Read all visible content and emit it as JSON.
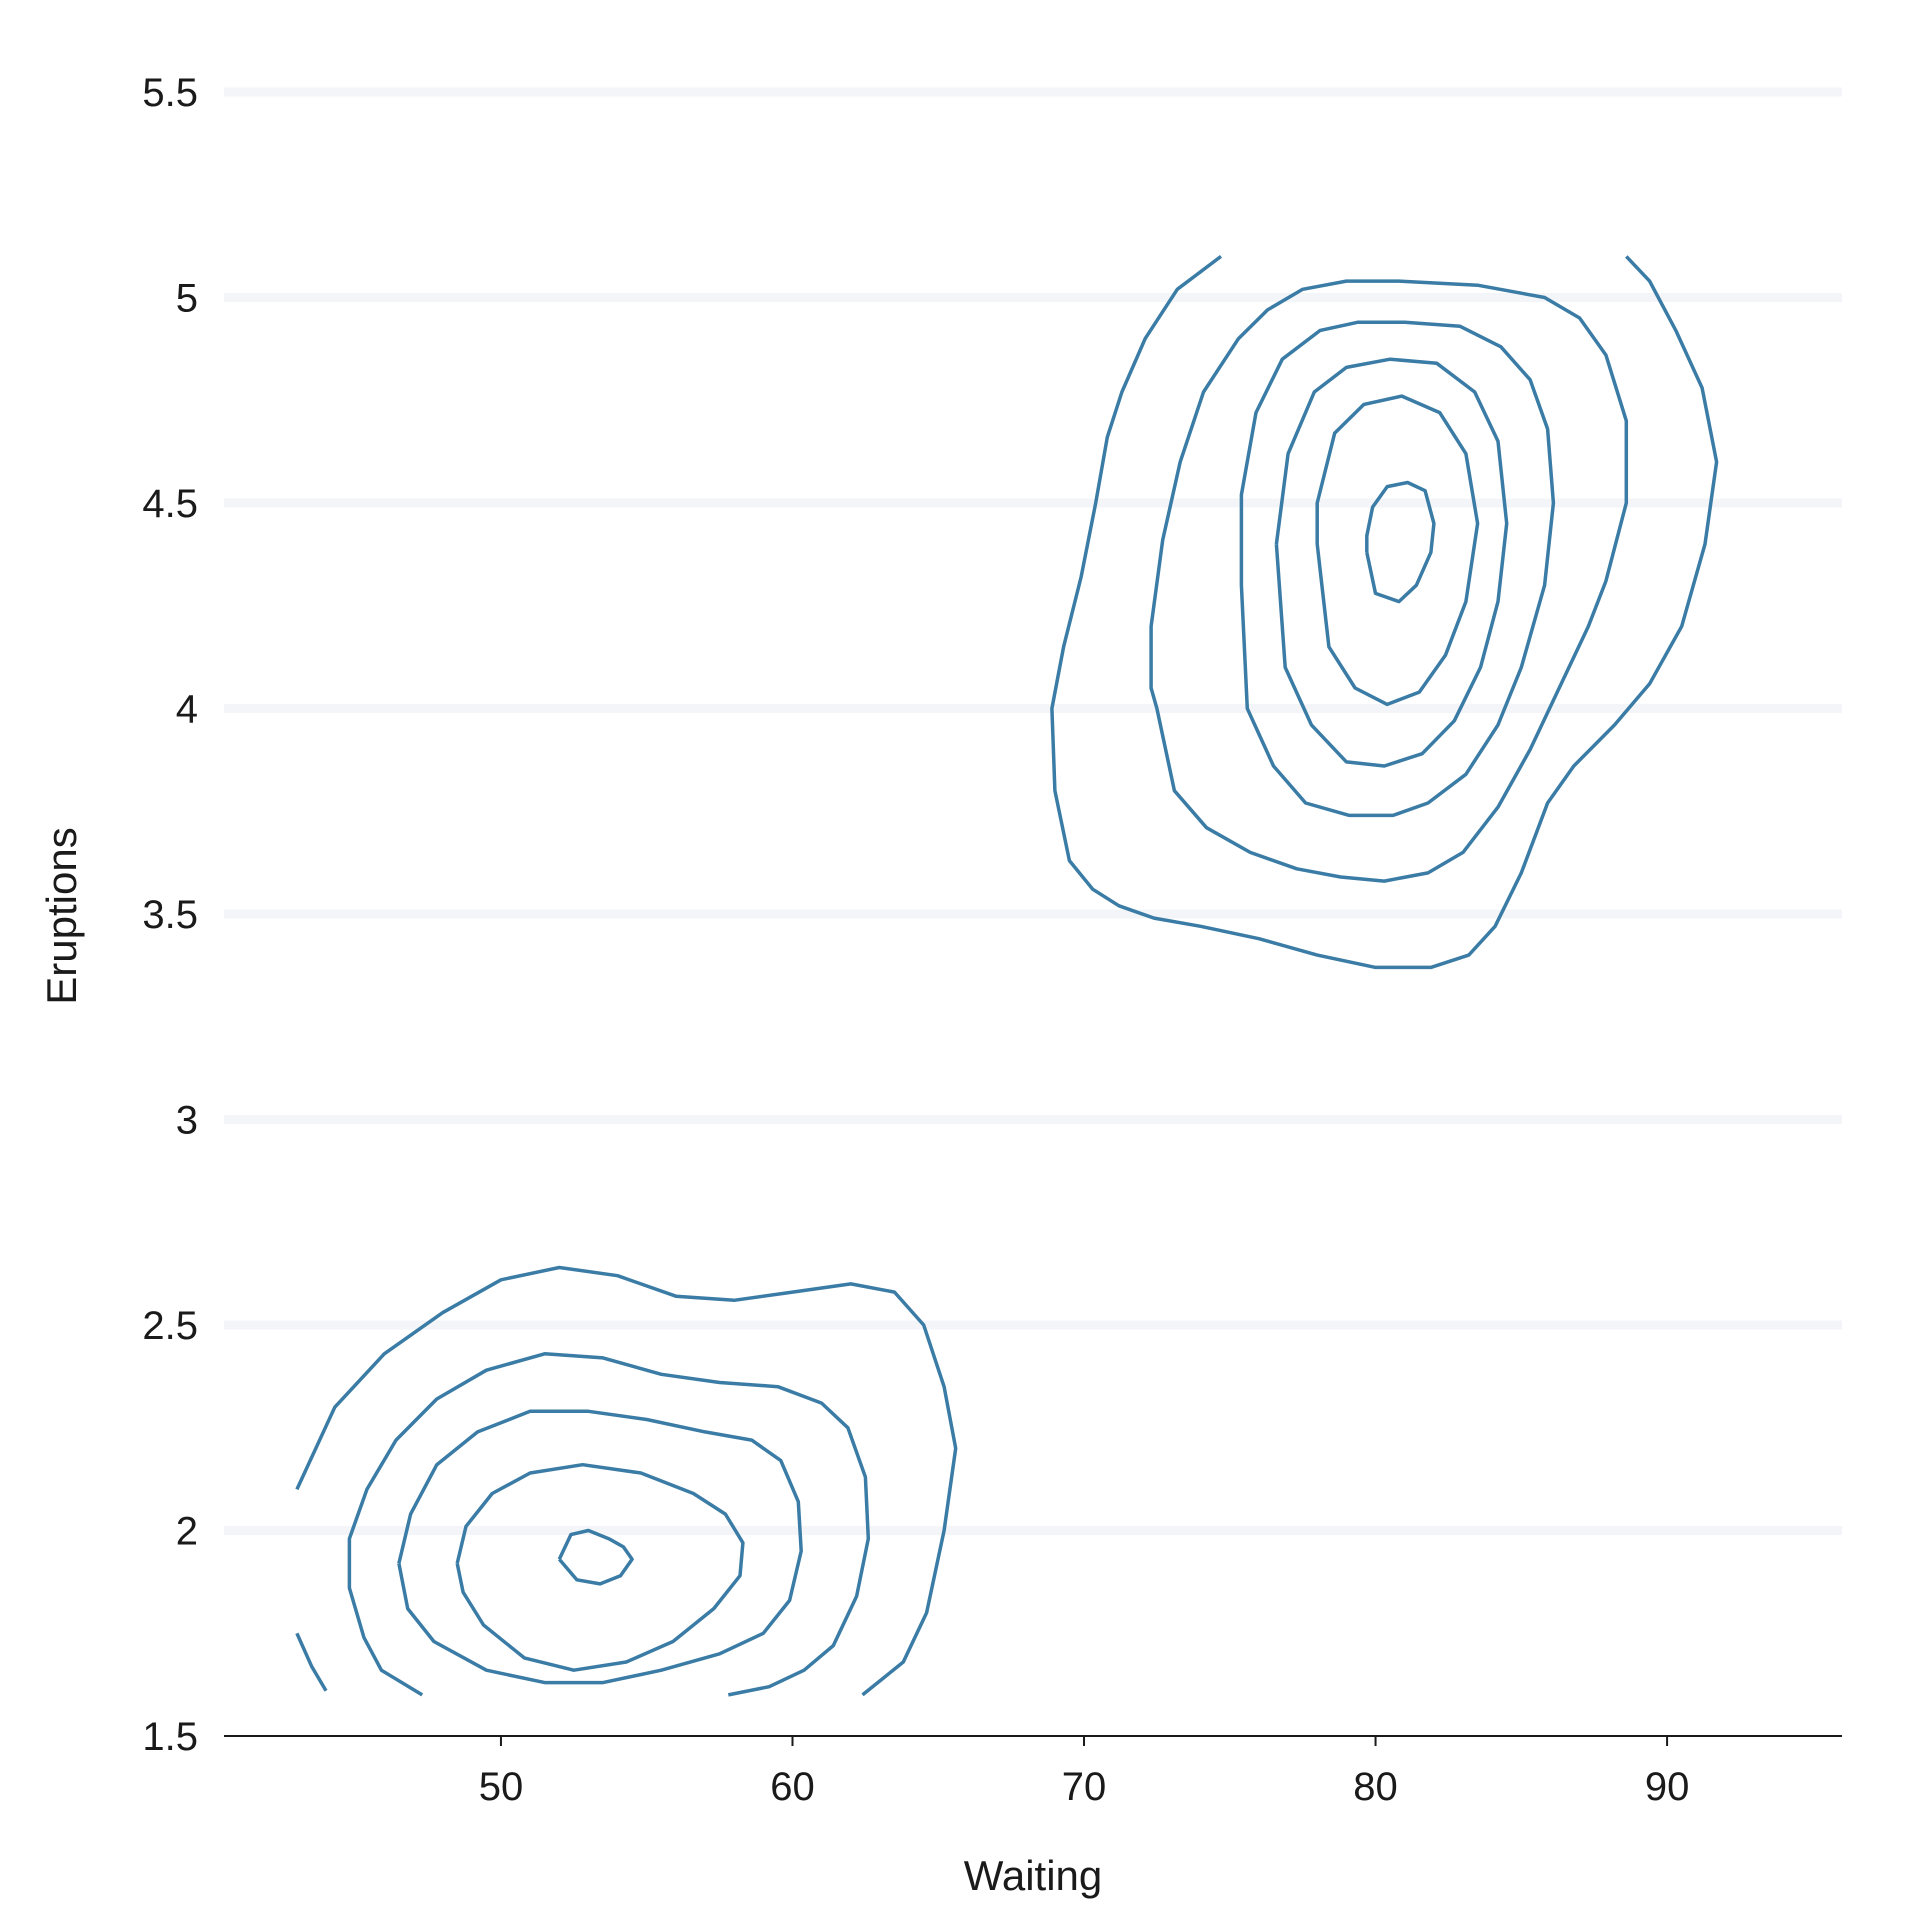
{
  "chart_data": {
    "type": "contour",
    "xlabel": "Waiting",
    "ylabel": "Eruptions",
    "xlim": [
      40.5,
      96
    ],
    "ylim": [
      1.5,
      5.5
    ],
    "x_ticks": [
      "50",
      "60",
      "70",
      "80",
      "90"
    ],
    "y_ticks": [
      "1.5",
      "2",
      "2.5",
      "3",
      "3.5",
      "4",
      "4.5",
      "5",
      "5.5"
    ],
    "grid": "horizontal",
    "line_color": "#3a7ca5",
    "series": [
      {
        "cluster": "long",
        "contours": [
          [
            [
              74.7,
              5.1
            ],
            [
              73.2,
              5.02
            ],
            [
              72.1,
              4.9
            ],
            [
              71.3,
              4.77
            ],
            [
              70.8,
              4.66
            ],
            [
              70.4,
              4.5
            ],
            [
              69.9,
              4.32
            ],
            [
              69.3,
              4.15
            ],
            [
              68.9,
              4.0
            ],
            [
              69.0,
              3.8
            ],
            [
              69.5,
              3.63
            ],
            [
              70.3,
              3.56
            ],
            [
              71.2,
              3.52
            ],
            [
              72.4,
              3.49
            ],
            [
              74.0,
              3.47
            ],
            [
              76.0,
              3.44
            ],
            [
              78.0,
              3.4
            ],
            [
              80.0,
              3.37
            ],
            [
              81.9,
              3.37
            ],
            [
              83.2,
              3.4
            ],
            [
              84.1,
              3.47
            ],
            [
              85.0,
              3.6
            ],
            [
              85.9,
              3.77
            ],
            [
              86.8,
              3.86
            ],
            [
              88.2,
              3.96
            ],
            [
              89.4,
              4.06
            ],
            [
              90.5,
              4.2
            ],
            [
              91.3,
              4.4
            ],
            [
              91.7,
              4.6
            ],
            [
              91.2,
              4.78
            ],
            [
              90.3,
              4.92
            ],
            [
              89.4,
              5.04
            ],
            [
              88.6,
              5.1
            ]
          ],
          [
            [
              72.5,
              4.0
            ],
            [
              73.1,
              3.8
            ],
            [
              74.2,
              3.71
            ],
            [
              75.7,
              3.65
            ],
            [
              77.3,
              3.61
            ],
            [
              78.8,
              3.59
            ],
            [
              80.3,
              3.58
            ],
            [
              81.8,
              3.6
            ],
            [
              83.0,
              3.65
            ],
            [
              84.2,
              3.76
            ],
            [
              85.3,
              3.9
            ],
            [
              86.3,
              4.05
            ],
            [
              87.3,
              4.2
            ],
            [
              87.9,
              4.31
            ],
            [
              88.6,
              4.5
            ],
            [
              88.6,
              4.7
            ],
            [
              87.9,
              4.86
            ],
            [
              87.0,
              4.95
            ],
            [
              85.8,
              5.0
            ],
            [
              83.5,
              5.03
            ],
            [
              80.8,
              5.04
            ],
            [
              79.0,
              5.04
            ],
            [
              77.5,
              5.02
            ],
            [
              76.3,
              4.97
            ],
            [
              75.3,
              4.9
            ],
            [
              74.1,
              4.77
            ],
            [
              73.3,
              4.6
            ],
            [
              72.7,
              4.41
            ],
            [
              72.3,
              4.2
            ],
            [
              72.3,
              4.05
            ],
            [
              72.5,
              4.0
            ]
          ],
          [
            [
              75.4,
              4.3
            ],
            [
              75.6,
              4.0
            ],
            [
              76.5,
              3.86
            ],
            [
              77.6,
              3.77
            ],
            [
              79.1,
              3.74
            ],
            [
              80.6,
              3.74
            ],
            [
              81.8,
              3.77
            ],
            [
              83.1,
              3.84
            ],
            [
              84.2,
              3.96
            ],
            [
              85.0,
              4.1
            ],
            [
              85.8,
              4.3
            ],
            [
              86.1,
              4.5
            ],
            [
              85.9,
              4.68
            ],
            [
              85.3,
              4.8
            ],
            [
              84.3,
              4.88
            ],
            [
              82.9,
              4.93
            ],
            [
              81.0,
              4.94
            ],
            [
              79.4,
              4.94
            ],
            [
              78.1,
              4.92
            ],
            [
              76.8,
              4.85
            ],
            [
              75.9,
              4.72
            ],
            [
              75.4,
              4.52
            ],
            [
              75.4,
              4.3
            ]
          ],
          [
            [
              76.6,
              4.4
            ],
            [
              76.9,
              4.1
            ],
            [
              77.8,
              3.96
            ],
            [
              79.0,
              3.87
            ],
            [
              80.3,
              3.86
            ],
            [
              81.6,
              3.89
            ],
            [
              82.7,
              3.97
            ],
            [
              83.6,
              4.1
            ],
            [
              84.2,
              4.26
            ],
            [
              84.5,
              4.45
            ],
            [
              84.2,
              4.65
            ],
            [
              83.4,
              4.77
            ],
            [
              82.1,
              4.84
            ],
            [
              80.5,
              4.85
            ],
            [
              79.0,
              4.83
            ],
            [
              77.9,
              4.77
            ],
            [
              77.0,
              4.62
            ],
            [
              76.6,
              4.4
            ]
          ],
          [
            [
              78.0,
              4.4
            ],
            [
              78.4,
              4.15
            ],
            [
              79.3,
              4.05
            ],
            [
              80.4,
              4.01
            ],
            [
              81.5,
              4.04
            ],
            [
              82.4,
              4.13
            ],
            [
              83.1,
              4.26
            ],
            [
              83.5,
              4.45
            ],
            [
              83.1,
              4.62
            ],
            [
              82.2,
              4.72
            ],
            [
              80.9,
              4.76
            ],
            [
              79.6,
              4.74
            ],
            [
              78.6,
              4.67
            ],
            [
              78.0,
              4.5
            ],
            [
              78.0,
              4.4
            ]
          ],
          [
            [
              79.7,
              4.38
            ],
            [
              80.0,
              4.28
            ],
            [
              80.8,
              4.26
            ],
            [
              81.4,
              4.3
            ],
            [
              81.9,
              4.38
            ],
            [
              82.0,
              4.45
            ],
            [
              81.7,
              4.53
            ],
            [
              81.1,
              4.55
            ],
            [
              80.4,
              4.54
            ],
            [
              79.9,
              4.49
            ],
            [
              79.7,
              4.42
            ],
            [
              79.7,
              4.38
            ]
          ]
        ]
      },
      {
        "cluster": "short",
        "contours": [
          [
            [
              43.0,
              2.1
            ],
            [
              44.3,
              2.3
            ],
            [
              46.0,
              2.43
            ],
            [
              48.0,
              2.53
            ],
            [
              50.0,
              2.61
            ],
            [
              52.0,
              2.64
            ],
            [
              54.0,
              2.62
            ],
            [
              56.0,
              2.57
            ],
            [
              58.0,
              2.56
            ],
            [
              60.0,
              2.58
            ],
            [
              62.0,
              2.6
            ],
            [
              63.5,
              2.58
            ],
            [
              64.5,
              2.5
            ],
            [
              65.2,
              2.35
            ],
            [
              65.6,
              2.2
            ],
            [
              65.2,
              2.0
            ],
            [
              64.6,
              1.8
            ],
            [
              63.8,
              1.68
            ],
            [
              62.4,
              1.6
            ]
          ],
          [
            [
              43.0,
              1.75
            ],
            [
              43.5,
              1.67
            ],
            [
              44.0,
              1.61
            ]
          ],
          [
            [
              47.3,
              1.6
            ],
            [
              45.9,
              1.66
            ],
            [
              45.3,
              1.74
            ],
            [
              44.8,
              1.86
            ],
            [
              44.8,
              1.98
            ],
            [
              45.4,
              2.1
            ],
            [
              46.4,
              2.22
            ],
            [
              47.8,
              2.32
            ],
            [
              49.5,
              2.39
            ],
            [
              51.5,
              2.43
            ],
            [
              53.5,
              2.42
            ],
            [
              55.5,
              2.38
            ],
            [
              57.5,
              2.36
            ],
            [
              59.5,
              2.35
            ],
            [
              61.0,
              2.31
            ],
            [
              61.9,
              2.25
            ],
            [
              62.5,
              2.13
            ],
            [
              62.6,
              1.98
            ],
            [
              62.2,
              1.84
            ],
            [
              61.4,
              1.72
            ],
            [
              60.4,
              1.66
            ],
            [
              59.2,
              1.62
            ],
            [
              57.8,
              1.6
            ]
          ],
          [
            [
              46.5,
              1.92
            ],
            [
              46.9,
              2.04
            ],
            [
              47.8,
              2.16
            ],
            [
              49.2,
              2.24
            ],
            [
              51.0,
              2.29
            ],
            [
              53.0,
              2.29
            ],
            [
              55.0,
              2.27
            ],
            [
              57.0,
              2.24
            ],
            [
              58.6,
              2.22
            ],
            [
              59.6,
              2.17
            ],
            [
              60.2,
              2.07
            ],
            [
              60.3,
              1.95
            ],
            [
              59.9,
              1.83
            ],
            [
              59.0,
              1.75
            ],
            [
              57.5,
              1.7
            ],
            [
              55.5,
              1.66
            ],
            [
              53.5,
              1.63
            ],
            [
              51.5,
              1.63
            ],
            [
              49.5,
              1.66
            ],
            [
              47.7,
              1.73
            ],
            [
              46.8,
              1.81
            ],
            [
              46.5,
              1.92
            ]
          ],
          [
            [
              48.5,
              1.92
            ],
            [
              48.8,
              2.01
            ],
            [
              49.7,
              2.09
            ],
            [
              51.0,
              2.14
            ],
            [
              52.8,
              2.16
            ],
            [
              54.8,
              2.14
            ],
            [
              56.6,
              2.09
            ],
            [
              57.7,
              2.04
            ],
            [
              58.3,
              1.97
            ],
            [
              58.2,
              1.89
            ],
            [
              57.3,
              1.81
            ],
            [
              55.9,
              1.73
            ],
            [
              54.3,
              1.68
            ],
            [
              52.5,
              1.66
            ],
            [
              50.8,
              1.69
            ],
            [
              49.4,
              1.77
            ],
            [
              48.7,
              1.85
            ],
            [
              48.5,
              1.92
            ]
          ],
          [
            [
              52.0,
              1.93
            ],
            [
              52.4,
              1.99
            ],
            [
              53.0,
              2.0
            ],
            [
              53.7,
              1.98
            ],
            [
              54.2,
              1.96
            ],
            [
              54.5,
              1.93
            ],
            [
              54.1,
              1.89
            ],
            [
              53.4,
              1.87
            ],
            [
              52.6,
              1.88
            ],
            [
              52.0,
              1.93
            ]
          ]
        ]
      }
    ]
  }
}
